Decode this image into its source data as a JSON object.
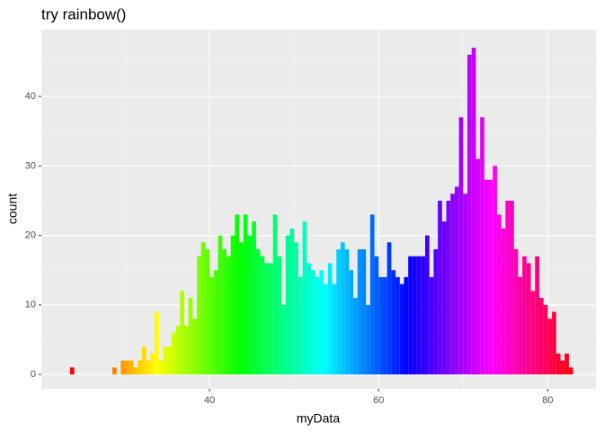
{
  "chart_data": {
    "type": "histogram",
    "title": "try rainbow()",
    "x_label": "myData",
    "y_label": "count",
    "bins": [
      23.5,
      24,
      24.5,
      25,
      25.5,
      26,
      26.5,
      27,
      27.5,
      28,
      28.5,
      29,
      29.5,
      30,
      30.5,
      31,
      31.5,
      32,
      32.5,
      33,
      33.5,
      34,
      34.5,
      35,
      35.5,
      36,
      36.5,
      37,
      37.5,
      38,
      38.5,
      39,
      39.5,
      40,
      40.5,
      41,
      41.5,
      42,
      42.5,
      43,
      43.5,
      44,
      44.5,
      45,
      45.5,
      46,
      46.5,
      47,
      47.5,
      48,
      48.5,
      49,
      49.5,
      50,
      50.5,
      51,
      51.5,
      52,
      52.5,
      53,
      53.5,
      54,
      54.5,
      55,
      55.5,
      56,
      56.5,
      57,
      57.5,
      58,
      58.5,
      59,
      59.5,
      60,
      60.5,
      61,
      61.5,
      62,
      62.5,
      63,
      63.5,
      64,
      64.5,
      65,
      65.5,
      66,
      66.5,
      67,
      67.5,
      68,
      68.5,
      69,
      69.5,
      70,
      70.5,
      71,
      71.5,
      72,
      72.5,
      73,
      73.5,
      74,
      74.5,
      75,
      75.5,
      76,
      76.5,
      77,
      77.5,
      78,
      78.5,
      79,
      79.5,
      80,
      80.5,
      81,
      81.5,
      82,
      82.5,
      83
    ],
    "values": [
      1,
      0,
      0,
      0,
      0,
      0,
      0,
      0,
      0,
      0,
      1,
      0,
      2,
      2,
      2,
      1,
      2,
      4,
      2,
      3,
      9,
      2,
      4,
      4,
      6,
      7,
      12,
      7,
      11,
      8,
      17,
      19,
      18,
      14,
      15,
      20,
      18,
      17,
      20,
      23,
      19,
      23,
      20,
      22,
      18,
      17,
      16,
      16,
      23,
      17,
      10,
      20,
      21,
      19,
      14,
      22,
      16,
      15,
      14,
      15,
      13,
      16,
      13,
      18,
      19,
      18,
      15,
      11,
      18,
      18,
      10,
      23,
      17,
      14,
      14,
      19,
      15,
      14,
      13,
      14,
      17,
      17,
      17,
      17,
      20,
      14,
      18,
      25,
      22,
      25,
      26,
      27,
      37,
      26,
      46,
      47,
      31,
      37,
      28,
      28,
      30,
      23,
      21,
      25,
      25,
      18,
      14,
      17,
      16,
      12,
      17,
      11,
      10,
      8,
      9,
      3,
      2,
      3,
      1
    ],
    "xlim": [
      20.1,
      85.7
    ],
    "xticks": [
      40,
      60,
      80
    ],
    "ylim": [
      -2.07,
      49.6
    ],
    "yticks": [
      0,
      10,
      20,
      30,
      40
    ],
    "grid": true
  }
}
